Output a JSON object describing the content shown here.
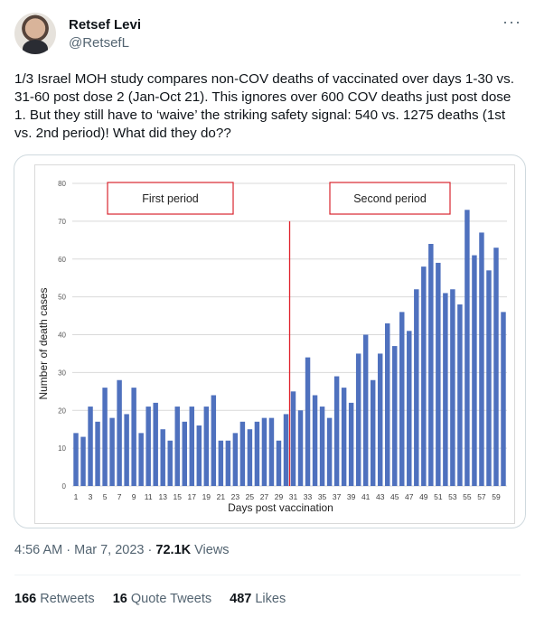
{
  "author": {
    "name": "Retsef Levi",
    "handle": "@RetsefL"
  },
  "more_icon": "more-horizontal-icon",
  "tweet_text": "1/3 Israel MOH study compares non-COV deaths of vaccinated over days 1-30 vs. 31-60 post dose 2 (Jan-Oct 21). This ignores over 600 COV deaths just post dose 1. But they still have to ‘waive’ the striking safety signal: 540 vs. 1275 deaths (1st vs. 2nd period)! What did they do??",
  "meta": {
    "time": "4:56 AM",
    "separator": "·",
    "date": "Mar 7, 2023",
    "views_count": "72.1K",
    "views_label": "Views"
  },
  "stats": {
    "retweets_count": "166",
    "retweets_label": "Retweets",
    "quotes_count": "16",
    "quotes_label": "Quote Tweets",
    "likes_count": "487",
    "likes_label": "Likes"
  },
  "chart_data": {
    "type": "bar",
    "xlabel": "Days post vaccination",
    "ylabel": "Number of death cases",
    "ylim": [
      0,
      80
    ],
    "yticks": [
      0,
      10,
      20,
      30,
      40,
      50,
      60,
      70,
      80
    ],
    "x": [
      1,
      2,
      3,
      4,
      5,
      6,
      7,
      8,
      9,
      10,
      11,
      12,
      13,
      14,
      15,
      16,
      17,
      18,
      19,
      20,
      21,
      22,
      23,
      24,
      25,
      26,
      27,
      28,
      29,
      30,
      31,
      32,
      33,
      34,
      35,
      36,
      37,
      38,
      39,
      40,
      41,
      42,
      43,
      44,
      45,
      46,
      47,
      48,
      49,
      50,
      51,
      52,
      53,
      54,
      55,
      56,
      57,
      58,
      59,
      60
    ],
    "xtick_labels": [
      "1",
      "3",
      "5",
      "7",
      "9",
      "11",
      "13",
      "15",
      "17",
      "19",
      "21",
      "23",
      "25",
      "27",
      "29",
      "31",
      "33",
      "35",
      "37",
      "39",
      "41",
      "43",
      "45",
      "47",
      "49",
      "51",
      "53",
      "55",
      "57",
      "59"
    ],
    "values": [
      14,
      13,
      21,
      17,
      26,
      18,
      28,
      19,
      26,
      14,
      21,
      22,
      15,
      12,
      21,
      17,
      21,
      16,
      21,
      24,
      12,
      12,
      14,
      17,
      15,
      17,
      18,
      18,
      12,
      19,
      25,
      20,
      34,
      24,
      21,
      18,
      29,
      26,
      22,
      35,
      40,
      28,
      35,
      43,
      37,
      46,
      41,
      52,
      58,
      64,
      59,
      51,
      52,
      48,
      73,
      61,
      67,
      57,
      63,
      46
    ],
    "bar_color": "#4f71be",
    "divider_after_day": 30,
    "divider_color": "#e0202a",
    "annotations": [
      "First period",
      "Second period"
    ],
    "annotation_border_color": "#d9262e",
    "grid": true
  }
}
